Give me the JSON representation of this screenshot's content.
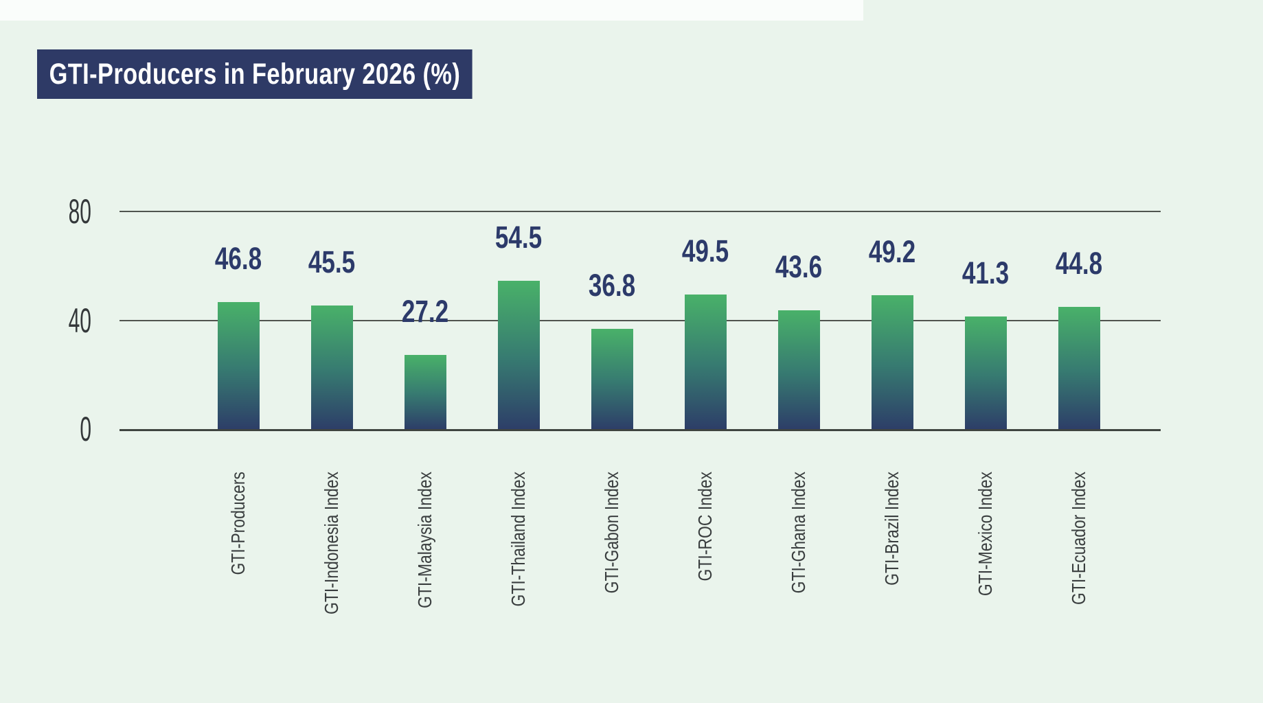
{
  "page": {
    "background_color": "#eaf4ec",
    "top_strip_color": "#fafdfb",
    "top_strip_width": 1257
  },
  "title": {
    "text": "GTI-Producers in February 2026 (%)",
    "background_color": "#2e3a66",
    "text_color": "#ffffff"
  },
  "chart_data": {
    "type": "bar",
    "title": "GTI-Producers in February 2026 (%)",
    "categories": [
      "GTI-Producers",
      "GTI-Indonesia Index",
      "GTI-Malaysia Index",
      "GTI-Thailand Index",
      "GTI-Gabon Index",
      "GTI-ROC Index",
      "GTI-Ghana Index",
      "GTI-Brazil Index",
      "GTI-Mexico Index",
      "GTI-Ecuador Index"
    ],
    "values": [
      46.8,
      45.5,
      27.2,
      54.5,
      36.8,
      49.5,
      43.6,
      49.2,
      41.3,
      44.8
    ],
    "data_labels": [
      "46.8",
      "45.5",
      "27.2",
      "54.5",
      "36.8",
      "49.5",
      "43.6",
      "49.2",
      "41.3",
      "44.8"
    ],
    "xlabel": "",
    "ylabel": "",
    "y_ticks": [
      0,
      40,
      80
    ],
    "ylim": [
      0,
      80
    ],
    "grid": true,
    "legend_position": "none",
    "colors": {
      "bar_gradient_top": "#49b169",
      "bar_gradient_mid": "#377b71",
      "bar_gradient_bottom": "#2d3e68",
      "value_label": "#2c3a6a",
      "tick_label": "#34383a",
      "category_label": "#3a3e3f",
      "gridline": "#50544f",
      "baseline": "#3f4440"
    }
  }
}
